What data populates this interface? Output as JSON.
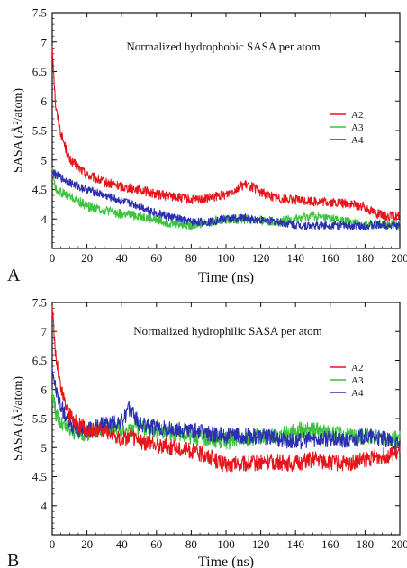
{
  "chart_data": [
    {
      "panel_label": "A",
      "type": "line",
      "title": "Normalized hydrophobic SASA per atom",
      "xlabel": "Time (ns)",
      "ylabel": "SASA (Å²/atom)",
      "xlim": [
        0,
        200
      ],
      "ylim": [
        3.5,
        7.5
      ],
      "xticks": [
        0,
        20,
        40,
        60,
        80,
        100,
        120,
        140,
        160,
        180,
        200
      ],
      "yticks": [
        4,
        4.5,
        5,
        5.5,
        6,
        6.5,
        7,
        7.5
      ],
      "ytick_labels": [
        "4",
        "4.5",
        "5",
        "5.5",
        "6",
        "6.5",
        "7",
        "7.5"
      ],
      "grid": false,
      "legend_position": "right",
      "x": [
        0,
        2,
        5,
        10,
        15,
        20,
        30,
        40,
        50,
        60,
        70,
        80,
        90,
        100,
        110,
        115,
        120,
        130,
        140,
        150,
        160,
        170,
        180,
        190,
        200
      ],
      "series": [
        {
          "name": "A2",
          "color": "#e8141c",
          "noise": 0.08,
          "values": [
            6.95,
            5.9,
            5.45,
            5.0,
            4.88,
            4.75,
            4.62,
            4.55,
            4.5,
            4.42,
            4.38,
            4.32,
            4.35,
            4.42,
            4.58,
            4.55,
            4.45,
            4.35,
            4.32,
            4.3,
            4.28,
            4.26,
            4.2,
            4.05,
            4.05
          ]
        },
        {
          "name": "A3",
          "color": "#3cc23c",
          "noise": 0.08,
          "values": [
            4.9,
            4.5,
            4.45,
            4.38,
            4.3,
            4.22,
            4.15,
            4.08,
            4.05,
            3.98,
            3.92,
            3.9,
            3.95,
            4.0,
            4.0,
            3.98,
            3.98,
            3.95,
            4.0,
            4.05,
            4.0,
            3.95,
            3.9,
            3.92,
            3.9
          ]
        },
        {
          "name": "A4",
          "color": "#2b2fb0",
          "noise": 0.07,
          "values": [
            4.8,
            4.75,
            4.7,
            4.62,
            4.55,
            4.5,
            4.4,
            4.3,
            4.22,
            4.1,
            4.02,
            3.95,
            3.95,
            4.0,
            4.02,
            4.0,
            3.98,
            3.95,
            3.9,
            3.88,
            3.9,
            3.88,
            3.88,
            3.9,
            3.88
          ]
        }
      ]
    },
    {
      "panel_label": "B",
      "type": "line",
      "title": "Normalized hydrophilic SASA per atom",
      "xlabel": "Time (ns)",
      "ylabel": "SASA (Å²/atom)",
      "xlim": [
        0,
        200
      ],
      "ylim": [
        3.5,
        7.5
      ],
      "xticks": [
        0,
        20,
        40,
        60,
        80,
        100,
        120,
        140,
        160,
        180,
        200
      ],
      "yticks": [
        4,
        4.5,
        5,
        5.5,
        6,
        6.5,
        7,
        7.5
      ],
      "ytick_labels": [
        "4",
        "4.5",
        "5",
        "5.5",
        "6",
        "6.5",
        "7",
        "7.5"
      ],
      "grid": false,
      "legend_position": "right",
      "x": [
        0,
        2,
        5,
        10,
        15,
        20,
        30,
        40,
        45,
        50,
        60,
        70,
        80,
        90,
        100,
        110,
        120,
        130,
        140,
        150,
        160,
        170,
        180,
        190,
        200
      ],
      "series": [
        {
          "name": "A2",
          "color": "#e8141c",
          "noise": 0.14,
          "values": [
            7.4,
            6.6,
            6.0,
            5.55,
            5.4,
            5.3,
            5.3,
            5.15,
            5.2,
            5.1,
            5.05,
            5.0,
            4.95,
            4.85,
            4.7,
            4.72,
            4.75,
            4.75,
            4.72,
            4.8,
            4.75,
            4.72,
            4.8,
            4.85,
            4.9
          ]
        },
        {
          "name": "A3",
          "color": "#3cc23c",
          "noise": 0.14,
          "values": [
            6.0,
            5.6,
            5.4,
            5.3,
            5.25,
            5.25,
            5.35,
            5.3,
            5.3,
            5.35,
            5.3,
            5.25,
            5.2,
            5.15,
            5.1,
            5.15,
            5.2,
            5.2,
            5.3,
            5.3,
            5.25,
            5.2,
            5.2,
            5.15,
            5.15
          ]
        },
        {
          "name": "A4",
          "color": "#2b2fb0",
          "noise": 0.14,
          "values": [
            6.4,
            6.0,
            5.7,
            5.4,
            5.3,
            5.3,
            5.4,
            5.45,
            5.7,
            5.4,
            5.35,
            5.3,
            5.3,
            5.25,
            5.2,
            5.2,
            5.2,
            5.15,
            5.1,
            5.15,
            5.15,
            5.1,
            5.2,
            5.15,
            5.05
          ]
        }
      ]
    }
  ]
}
